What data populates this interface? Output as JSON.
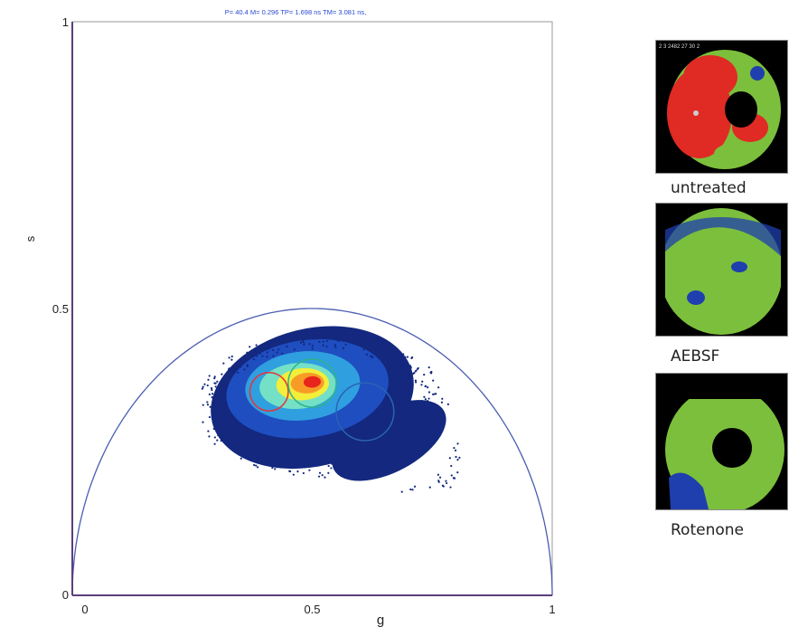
{
  "chart_data": {
    "type": "scatter",
    "title": "P= 40.4 M= 0.296 TP= 1.698 ns TM= 3.081 ns,",
    "xlabel": "g",
    "ylabel": "s",
    "xlim": [
      0,
      1
    ],
    "ylim": [
      0,
      1
    ],
    "x_ticks": [
      "0",
      "0.5",
      "1"
    ],
    "y_ticks": [
      "0",
      "0.5",
      "1"
    ],
    "universal_circle": {
      "center_g": 0.5,
      "radius": 0.5
    },
    "density_cloud": {
      "peak_g": 0.5,
      "peak_s": 0.37,
      "g_range": [
        0.27,
        0.81
      ],
      "s_range": [
        0.18,
        0.48
      ]
    },
    "cursors": [
      {
        "color": "#e8333a",
        "center_g": 0.41,
        "center_s": 0.355,
        "radius": 0.04
      },
      {
        "color": "#2fb38a",
        "center_g": 0.5,
        "center_s": 0.37,
        "radius": 0.05
      },
      {
        "color": "#2b63b5",
        "center_g": 0.61,
        "center_s": 0.32,
        "radius": 0.06
      }
    ],
    "grid": false,
    "colors": {
      "axis": "#5a3f7d",
      "circle": "#4a5db0",
      "title": "#2a4ad0"
    }
  },
  "images": [
    {
      "label": "untreated",
      "header": "2 3 2482 27 30 2"
    },
    {
      "label": "AEBSF"
    },
    {
      "label": "Rotenone"
    }
  ]
}
